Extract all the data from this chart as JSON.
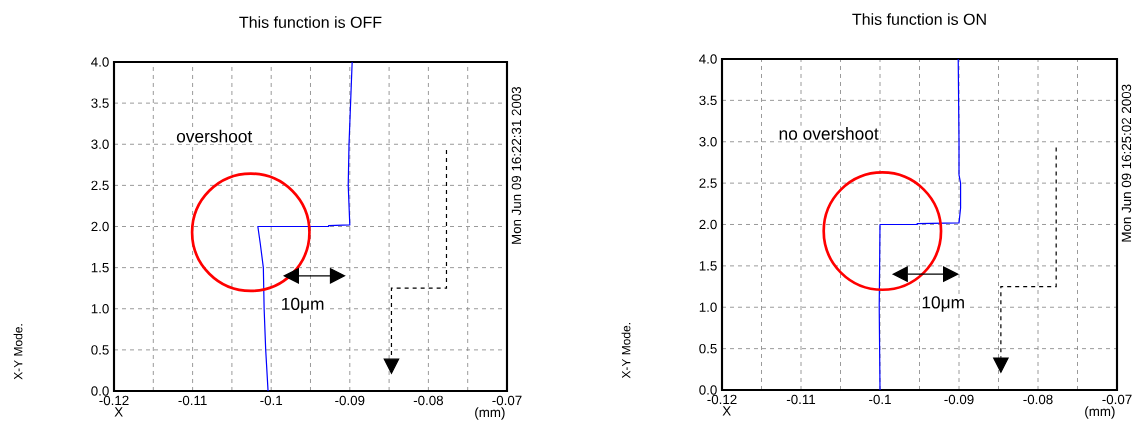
{
  "chart_data": [
    {
      "type": "line",
      "title": "This function is OFF",
      "xlabel": "X",
      "series": [
        {
          "color": "#0000ff",
          "x": [
            -0.1004,
            -0.1007,
            -0.1009,
            -0.101,
            -0.1014,
            -0.1017,
            -0.0927,
            -0.0927,
            -0.09,
            -0.0902,
            -0.0901,
            -0.0899,
            -0.0897
          ],
          "values": [
            0,
            0.5,
            1.0,
            1.5,
            1.8,
            2.0,
            2.0,
            2.01,
            2.02,
            2.5,
            3.0,
            3.5,
            4.0
          ]
        }
      ],
      "xlim": [
        -0.12,
        -0.07
      ],
      "ylim": [
        0,
        4
      ],
      "xticks": [
        -0.12,
        {
          "value": -0.115,
          "label": null
        },
        -0.11,
        {
          "value": -0.105,
          "label": null
        },
        -0.1,
        {
          "value": -0.095,
          "label": null
        },
        -0.09,
        {
          "value": -0.085,
          "label": null
        },
        -0.08,
        {
          "value": -0.075,
          "label": null
        },
        -0.07
      ],
      "yticks": [
        {
          "value": 0,
          "label": "0.0"
        },
        {
          "value": 0.5,
          "label": "0.5"
        },
        {
          "value": 1,
          "label": "1.0"
        },
        {
          "value": 1.5,
          "label": "1.5"
        },
        {
          "value": 2,
          "label": "2.0"
        },
        {
          "value": 2.5,
          "label": "2.5"
        },
        {
          "value": 3,
          "label": "3.0"
        },
        {
          "value": 3.5,
          "label": "3.5"
        },
        {
          "value": 4,
          "label": "4.0"
        }
      ],
      "grid": true,
      "legend": false,
      "marker": "none",
      "line_style": "solid",
      "annotations": [
        "overshoot",
        "10μm",
        "Mon Jun 09 16:22:31 2003",
        "X-Y Mode.",
        "(mm)"
      ]
    },
    {
      "type": "line",
      "title": "This function is ON",
      "xlabel": "X",
      "series": [
        {
          "color": "#0000ff",
          "x": [
            -0.1,
            -0.1001,
            -0.1,
            -0.0953,
            -0.0953,
            -0.09,
            -0.0898,
            -0.0898,
            -0.09,
            -0.09,
            -0.0901
          ],
          "values": [
            0,
            1.0,
            2.0,
            2.0,
            2.01,
            2.02,
            2.2,
            2.5,
            2.6,
            3.0,
            4.0
          ]
        }
      ],
      "xlim": [
        -0.12,
        -0.07
      ],
      "ylim": [
        0,
        4
      ],
      "xticks": [
        -0.12,
        {
          "value": -0.115,
          "label": null
        },
        -0.11,
        {
          "value": -0.105,
          "label": null
        },
        -0.1,
        {
          "value": -0.095,
          "label": null
        },
        -0.09,
        {
          "value": -0.085,
          "label": null
        },
        -0.08,
        {
          "value": -0.075,
          "label": null
        },
        -0.07
      ],
      "yticks": [
        {
          "value": 0,
          "label": "0.0"
        },
        {
          "value": 0.5,
          "label": "0.5"
        },
        {
          "value": 1,
          "label": "1.0"
        },
        {
          "value": 1.5,
          "label": "1.5"
        },
        {
          "value": 2,
          "label": "2.0"
        },
        {
          "value": 2.5,
          "label": "2.5"
        },
        {
          "value": 3,
          "label": "3.0"
        },
        {
          "value": 3.5,
          "label": "3.5"
        },
        {
          "value": 4,
          "label": "4.0"
        }
      ],
      "grid": true,
      "legend": false,
      "marker": "none",
      "line_style": "solid",
      "annotations": [
        "no overshoot",
        "10μm",
        "Mon Jun 09 16:25:02 2003",
        "X-Y Mode.",
        "(mm)"
      ]
    }
  ]
}
